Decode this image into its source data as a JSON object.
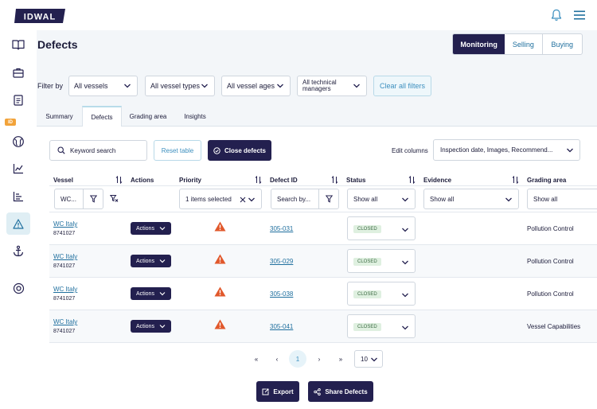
{
  "brand": {
    "logo_text": "IDWAL",
    "badge": "ID"
  },
  "header": {
    "title": "Defects"
  },
  "view_toggle": [
    "Monitoring",
    "Selling",
    "Buying"
  ],
  "filters": {
    "label": "Filter by",
    "vessels": "All vessels",
    "vessel_types": "All vessel types",
    "vessel_ages": "All vessel ages",
    "technical_managers": "All technical managers",
    "clear": "Clear all filters"
  },
  "tabs": [
    "Summary",
    "Defects",
    "Grading area",
    "Insights"
  ],
  "toolbar": {
    "search_placeholder": "Keyword search",
    "reset": "Reset table",
    "close_defects": "Close defects",
    "edit_columns_label": "Edit columns",
    "edit_columns_value": "Inspection date, Images, Recommend..."
  },
  "table": {
    "headers": {
      "vessel": "Vessel",
      "actions": "Actions",
      "priority": "Priority",
      "defect_id": "Defect ID",
      "status": "Status",
      "evidence": "Evidence",
      "grading_area": "Grading area"
    },
    "column_filters": {
      "vessel": "WC...",
      "priority": "1 items selected",
      "defect_id": "Search by...",
      "status": "Show all",
      "evidence": "Show all",
      "grading_area": "Show all"
    },
    "rows": [
      {
        "vessel": "WC Italy",
        "imo": "8741027",
        "actions": "Actions",
        "defect_id": "305-031",
        "status": "CLOSED",
        "grading_area": "Pollution Control"
      },
      {
        "vessel": "WC Italy",
        "imo": "8741027",
        "actions": "Actions",
        "defect_id": "305-029",
        "status": "CLOSED",
        "grading_area": "Pollution Control"
      },
      {
        "vessel": "WC Italy",
        "imo": "8741027",
        "actions": "Actions",
        "defect_id": "305-038",
        "status": "CLOSED",
        "grading_area": "Pollution Control"
      },
      {
        "vessel": "WC Italy",
        "imo": "8741027",
        "actions": "Actions",
        "defect_id": "305-041",
        "status": "CLOSED",
        "grading_area": "Vessel Capabilities"
      }
    ]
  },
  "pagination": {
    "first": "«",
    "prev": "‹",
    "current": "1",
    "next": "›",
    "last": "»",
    "page_size": "10"
  },
  "footer": {
    "export": "Export",
    "share": "Share Defects"
  },
  "colors": {
    "navy": "#23204f",
    "link": "#1f6f9e",
    "warning": "#e1582b",
    "closed_bg": "#dff0e0"
  },
  "icons": [
    "bell-icon",
    "menu-icon",
    "book-icon",
    "briefcase-icon",
    "document-icon",
    "globe-icon",
    "chart-icon",
    "list-chart-icon",
    "warning-icon",
    "anchor-icon",
    "support-icon"
  ]
}
